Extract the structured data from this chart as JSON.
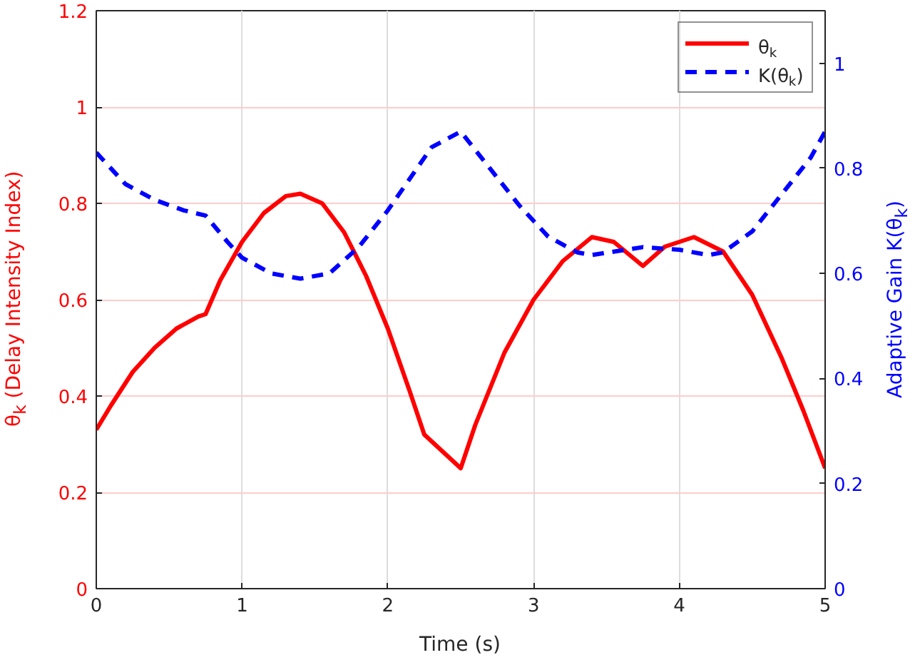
{
  "chart_data": {
    "type": "line",
    "xlabel": "Time (s)",
    "ylabel": "θ$_{k}$ (Delay Intensity Index)",
    "y2label": "Adaptive Gain K(θ$_{k}$)",
    "xlim": [
      0,
      5
    ],
    "xticks": [
      0,
      1,
      2,
      3,
      4,
      5
    ],
    "ylim": [
      0,
      1.2
    ],
    "yticks": [
      0,
      0.2,
      0.4,
      0.6,
      0.8,
      1,
      1.2
    ],
    "y2lim": [
      0,
      1.1
    ],
    "y2ticks": [
      0,
      0.2,
      0.4,
      0.6,
      0.8,
      1
    ],
    "grid": true,
    "legend": "top right",
    "series": [
      {
        "name": "θ$_{k}$",
        "color": "#ff0000",
        "line_style": "solid",
        "x": [
          0,
          0.1,
          0.25,
          0.4,
          0.55,
          0.7,
          0.75,
          0.85,
          1.0,
          1.15,
          1.3,
          1.4,
          1.55,
          1.7,
          1.85,
          2.0,
          2.15,
          2.25,
          2.5,
          2.6,
          2.8,
          3.0,
          3.2,
          3.4,
          3.55,
          3.75,
          3.9,
          4.1,
          4.3,
          4.5,
          4.7,
          4.85,
          5.0
        ],
        "values": [
          0.33,
          0.38,
          0.45,
          0.5,
          0.54,
          0.565,
          0.57,
          0.64,
          0.72,
          0.78,
          0.815,
          0.82,
          0.8,
          0.74,
          0.65,
          0.54,
          0.41,
          0.32,
          0.25,
          0.34,
          0.49,
          0.6,
          0.68,
          0.73,
          0.72,
          0.67,
          0.71,
          0.73,
          0.7,
          0.61,
          0.48,
          0.37,
          0.25
        ]
      },
      {
        "name": "K(θ$_{k}$)",
        "color": "#0000ff",
        "line_style": "dashed",
        "axis": "y2",
        "x": [
          0,
          0.2,
          0.4,
          0.6,
          0.75,
          0.9,
          1.0,
          1.2,
          1.4,
          1.6,
          1.8,
          2.0,
          2.2,
          2.3,
          2.5,
          2.7,
          2.9,
          3.1,
          3.3,
          3.4,
          3.75,
          4.0,
          4.2,
          4.3,
          4.5,
          4.7,
          4.9,
          5.0
        ],
        "values": [
          0.83,
          0.77,
          0.74,
          0.72,
          0.71,
          0.66,
          0.63,
          0.6,
          0.59,
          0.6,
          0.65,
          0.72,
          0.8,
          0.84,
          0.87,
          0.8,
          0.73,
          0.67,
          0.64,
          0.635,
          0.65,
          0.645,
          0.635,
          0.64,
          0.68,
          0.75,
          0.82,
          0.87
        ]
      }
    ]
  }
}
